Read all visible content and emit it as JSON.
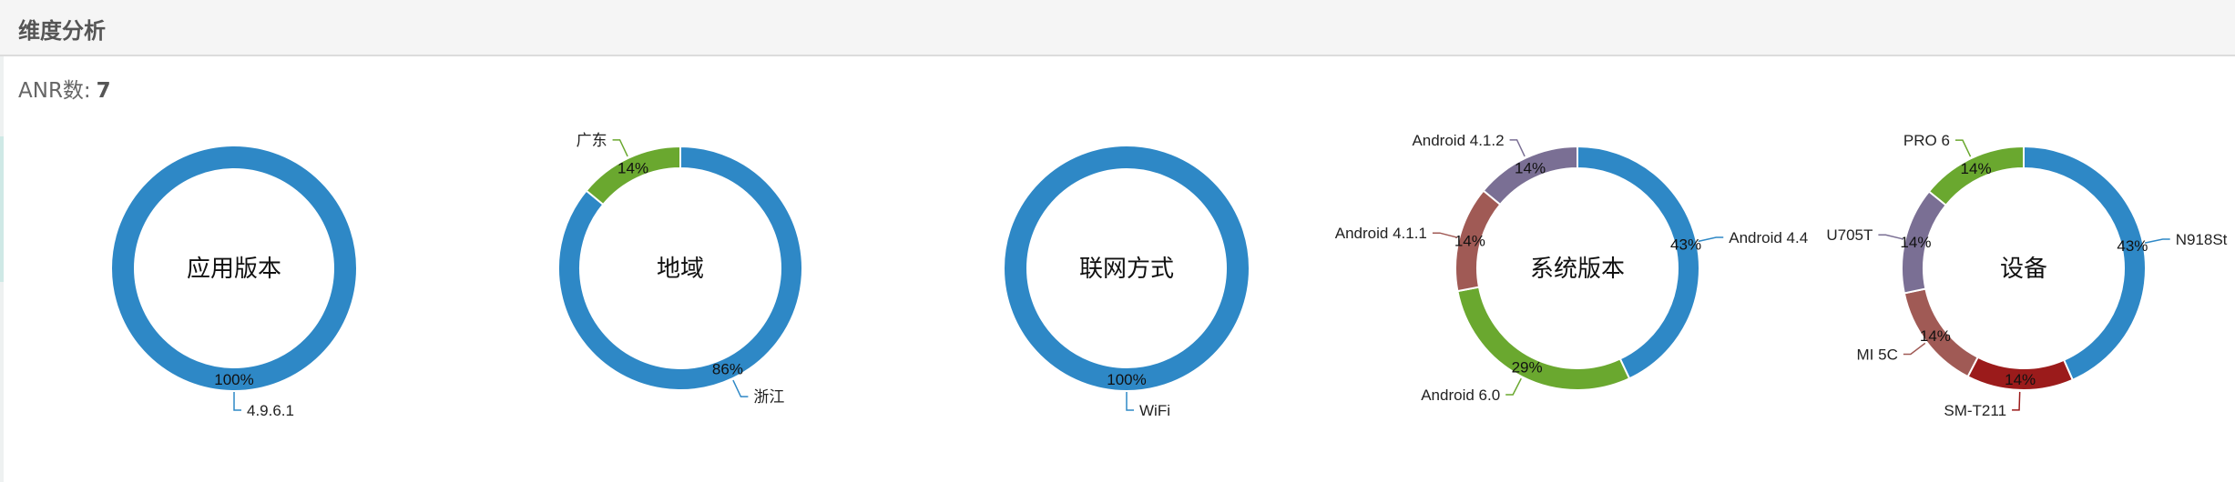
{
  "panel": {
    "title": "维度分析"
  },
  "summary": {
    "anr_label": "ANR数:",
    "anr_count": "7"
  },
  "colors": {
    "blue": "#2e88c6",
    "green": "#6aa82f",
    "brown": "#a05a55",
    "purple": "#7a6f94",
    "darkred": "#9b1b1b"
  },
  "chart_data": [
    {
      "type": "pie",
      "donut": true,
      "center_label": "应用版本",
      "slices": [
        {
          "name": "4.9.6.1",
          "percent": 100,
          "label": "100%",
          "color": "#2e88c6"
        }
      ]
    },
    {
      "type": "pie",
      "donut": true,
      "center_label": "地域",
      "slices": [
        {
          "name": "浙江",
          "percent": 86,
          "label": "86%",
          "color": "#2e88c6"
        },
        {
          "name": "广东",
          "percent": 14,
          "label": "14%",
          "color": "#6aa82f"
        }
      ]
    },
    {
      "type": "pie",
      "donut": true,
      "center_label": "联网方式",
      "slices": [
        {
          "name": "WiFi",
          "percent": 100,
          "label": "100%",
          "color": "#2e88c6"
        }
      ]
    },
    {
      "type": "pie",
      "donut": true,
      "center_label": "系统版本",
      "slices": [
        {
          "name": "Android 4.4",
          "percent": 43,
          "label": "43%",
          "color": "#2e88c6"
        },
        {
          "name": "Android 6.0",
          "percent": 29,
          "label": "29%",
          "color": "#6aa82f"
        },
        {
          "name": "Android 4.1.1",
          "percent": 14,
          "label": "14%",
          "color": "#a05a55"
        },
        {
          "name": "Android 4.1.2",
          "percent": 14,
          "label": "14%",
          "color": "#7a6f94"
        }
      ]
    },
    {
      "type": "pie",
      "donut": true,
      "center_label": "设备",
      "slices": [
        {
          "name": "N918St",
          "percent": 43,
          "label": "43%",
          "color": "#2e88c6"
        },
        {
          "name": "SM-T211",
          "percent": 14,
          "label": "14%",
          "color": "#9b1b1b"
        },
        {
          "name": "MI 5C",
          "percent": 14,
          "label": "14%",
          "color": "#a05a55"
        },
        {
          "name": "U705T",
          "percent": 14,
          "label": "14%",
          "color": "#7a6f94"
        },
        {
          "name": "PRO 6",
          "percent": 14,
          "label": "14%",
          "color": "#6aa82f"
        }
      ]
    }
  ]
}
